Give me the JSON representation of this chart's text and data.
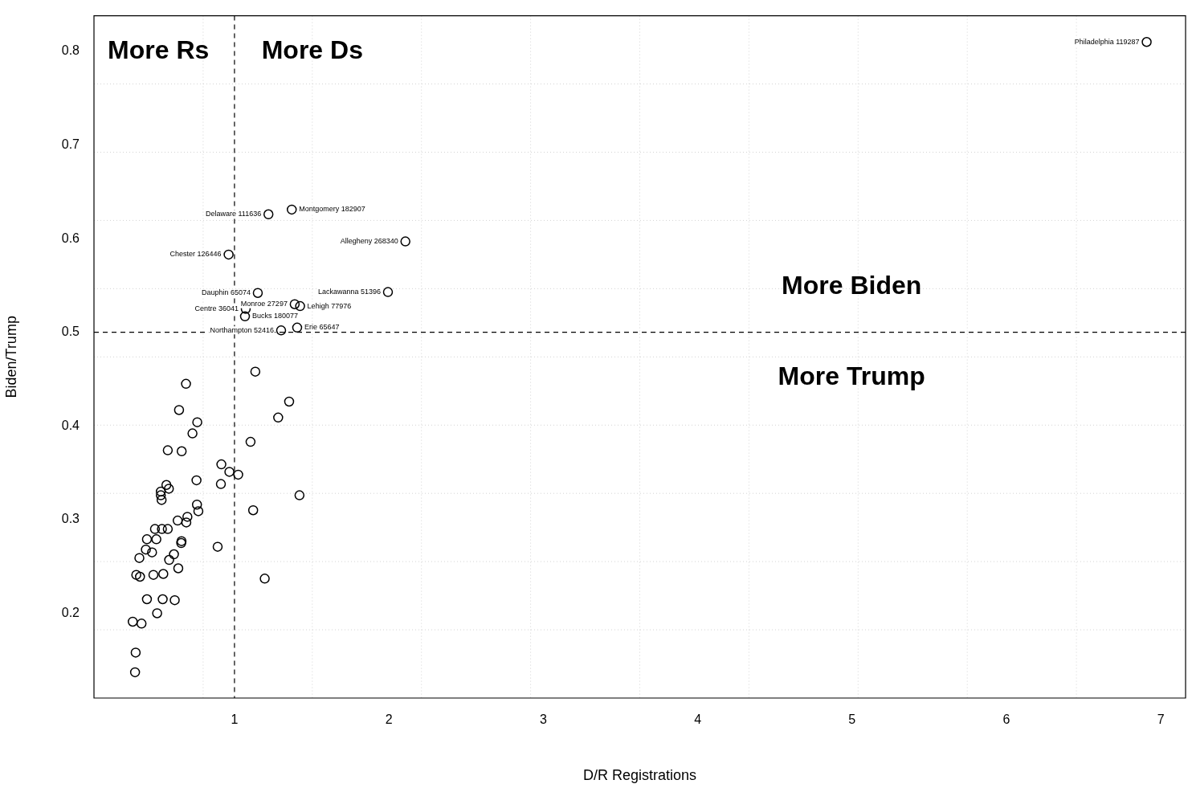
{
  "chart_data": {
    "type": "scatter",
    "xlabel": "D/R Registrations",
    "ylabel": "Biden/Trump",
    "xlim": [
      0.09,
      7.16
    ],
    "ylim": [
      0.1095,
      0.838
    ],
    "xticks": [
      1,
      2,
      3,
      4,
      5,
      6,
      7
    ],
    "yticks": [
      0.2,
      0.3,
      0.4,
      0.5,
      0.6,
      0.7,
      0.8
    ],
    "grid": true,
    "legend": false,
    "marker": "circle",
    "ref_lines": [
      {
        "axis": "x",
        "value": 1,
        "line_style": "dashed",
        "color": "#000000"
      },
      {
        "axis": "y",
        "value": 0.5,
        "line_style": "dashed",
        "color": "#000000"
      }
    ],
    "annotations": [
      "More Rs",
      "More Ds",
      "More Biden",
      "More Trump"
    ],
    "series": [
      {
        "color": "#000000",
        "x": [
          6.908,
          1.371,
          1.22,
          2.107,
          0.962,
          1.151,
          1.994,
          1.39,
          1.425,
          1.073,
          1.068,
          1.406,
          1.302,
          1.135,
          0.686,
          1.354,
          0.641,
          1.283,
          0.759,
          0.728,
          1.104,
          0.568,
          0.658,
          0.915,
          0.967,
          1.024,
          0.754,
          0.912,
          0.559,
          0.575,
          0.523,
          0.523,
          0.528,
          1.421,
          0.757,
          0.766,
          1.121,
          0.695,
          0.632,
          0.688,
          0.485,
          0.53,
          0.568,
          0.433,
          0.494,
          0.657,
          0.655,
          0.891,
          0.426,
          0.466,
          0.608,
          0.384,
          0.577,
          0.636,
          0.364,
          0.388,
          0.475,
          0.539,
          1.196,
          0.433,
          0.535,
          0.613,
          0.499,
          0.341,
          0.398,
          0.36,
          0.356
        ],
        "values": [
          0.81,
          0.631,
          0.626,
          0.597,
          0.583,
          0.542,
          0.543,
          0.53,
          0.528,
          0.525,
          0.517,
          0.505,
          0.502,
          0.458,
          0.445,
          0.426,
          0.417,
          0.409,
          0.404,
          0.392,
          0.383,
          0.374,
          0.373,
          0.359,
          0.351,
          0.348,
          0.342,
          0.338,
          0.337,
          0.333,
          0.33,
          0.326,
          0.321,
          0.326,
          0.316,
          0.309,
          0.31,
          0.303,
          0.299,
          0.297,
          0.29,
          0.29,
          0.29,
          0.279,
          0.279,
          0.277,
          0.275,
          0.271,
          0.268,
          0.265,
          0.263,
          0.259,
          0.257,
          0.248,
          0.241,
          0.239,
          0.241,
          0.242,
          0.237,
          0.215,
          0.215,
          0.214,
          0.2,
          0.191,
          0.189,
          0.158,
          0.137
        ],
        "value_labels": [
          "Philadelphia 119287",
          "Montgomery 182907",
          "Delaware 111636",
          "Allegheny 268340",
          "Chester 126446",
          "Dauphin 65074",
          "Lackawanna 51396",
          "Monroe 27297",
          "Lehigh 77976",
          "Centre 36041",
          "Bucks 180077",
          "Erie 65647",
          "Northampton 52416",
          null,
          null,
          null,
          null,
          null,
          null,
          null,
          null,
          null,
          null,
          null,
          null,
          null,
          null,
          null,
          null,
          null,
          null,
          null,
          null,
          null,
          null,
          null,
          null,
          null,
          null,
          null,
          null,
          null,
          null,
          null,
          null,
          null,
          null,
          null,
          null,
          null,
          null,
          null,
          null,
          null,
          null,
          null,
          null,
          null,
          null,
          null,
          null,
          null,
          null,
          null,
          null,
          null,
          null
        ]
      }
    ]
  }
}
